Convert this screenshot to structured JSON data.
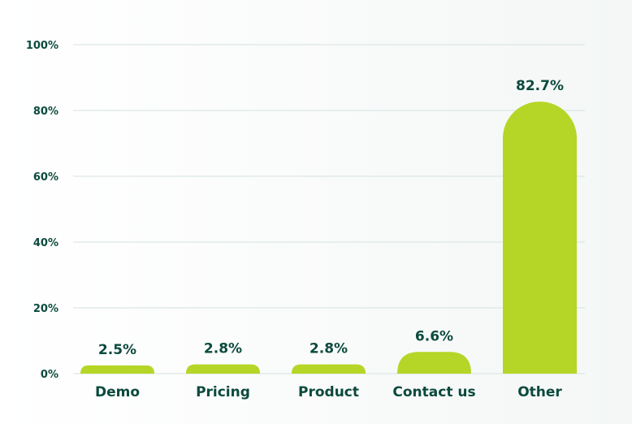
{
  "chart_data": {
    "type": "bar",
    "title": "",
    "xlabel": "",
    "ylabel": "",
    "categories": [
      "Demo",
      "Pricing",
      "Product",
      "Contact us",
      "Other"
    ],
    "values": [
      2.5,
      2.8,
      2.8,
      6.6,
      82.7
    ],
    "data_labels": [
      "2.5%",
      "2.8%",
      "2.8%",
      "6.6%",
      "82.7%"
    ],
    "ylim": [
      0,
      100
    ],
    "yticks": [
      0,
      20,
      40,
      60,
      80,
      100
    ],
    "ytick_labels": [
      "0%",
      "20%",
      "40%",
      "60%",
      "80%",
      "100%"
    ],
    "grid": true,
    "legend": "none",
    "colors": {
      "bar": "#b5d626",
      "text": "#0b4a3d",
      "grid": "#d5e3e0"
    }
  }
}
